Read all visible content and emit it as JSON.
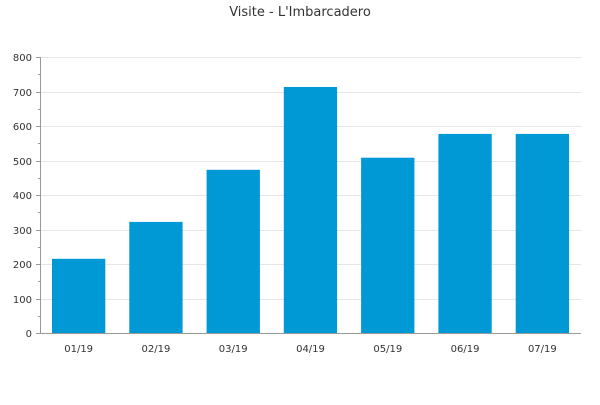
{
  "chart_data": {
    "type": "bar",
    "title": "Visite - L'Imbarcadero",
    "xlabel": "",
    "ylabel": "",
    "categories": [
      "01/19",
      "02/19",
      "03/19",
      "04/19",
      "05/19",
      "06/19",
      "07/19"
    ],
    "values": [
      215,
      322,
      473,
      713,
      508,
      577,
      577
    ],
    "ylim": [
      0,
      800
    ],
    "yticks": [
      0,
      100,
      200,
      300,
      400,
      500,
      600,
      700,
      800
    ],
    "grid": true,
    "legend": "none",
    "bar_color": "#0099d6",
    "grid_color": "#e6e6e6",
    "axis_color": "#999999"
  }
}
